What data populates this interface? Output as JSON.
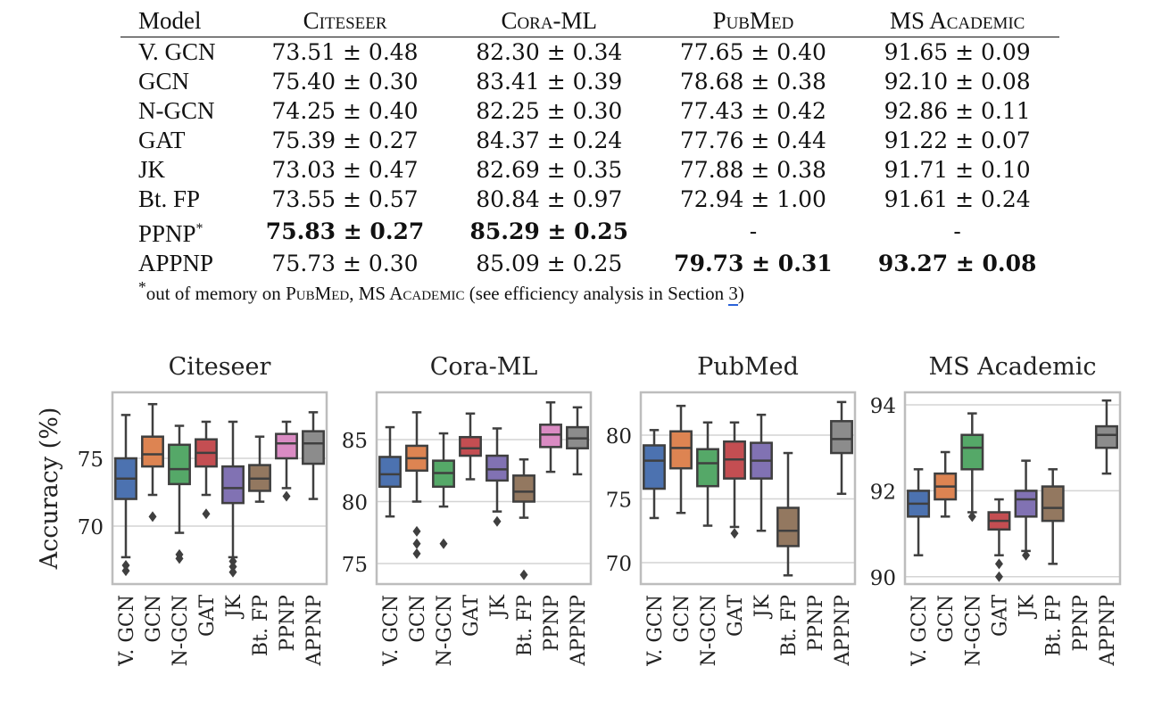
{
  "table": {
    "headers": [
      "Model",
      "Citeseer",
      "Cora-ML",
      "PubMed",
      "MS Academic"
    ],
    "rows": [
      {
        "model": "V. GCN",
        "cells": [
          "73.51 ± 0.48",
          "82.30 ± 0.34",
          "77.65 ± 0.40",
          "91.65 ± 0.09"
        ],
        "best": [
          false,
          false,
          false,
          false
        ]
      },
      {
        "model": "GCN",
        "cells": [
          "75.40 ± 0.30",
          "83.41 ± 0.39",
          "78.68 ± 0.38",
          "92.10 ± 0.08"
        ],
        "best": [
          false,
          false,
          false,
          false
        ]
      },
      {
        "model": "N-GCN",
        "cells": [
          "74.25 ± 0.40",
          "82.25 ± 0.30",
          "77.43 ± 0.42",
          "92.86 ± 0.11"
        ],
        "best": [
          false,
          false,
          false,
          false
        ]
      },
      {
        "model": "GAT",
        "cells": [
          "75.39 ± 0.27",
          "84.37 ± 0.24",
          "77.76 ± 0.44",
          "91.22 ± 0.07"
        ],
        "best": [
          false,
          false,
          false,
          false
        ]
      },
      {
        "model": "JK",
        "cells": [
          "73.03 ± 0.47",
          "82.69 ± 0.35",
          "77.88 ± 0.38",
          "91.71 ± 0.10"
        ],
        "best": [
          false,
          false,
          false,
          false
        ]
      },
      {
        "model": "Bt. FP",
        "cells": [
          "73.55 ± 0.57",
          "80.84 ± 0.97",
          "72.94 ± 1.00",
          "91.61 ± 0.24"
        ],
        "best": [
          false,
          false,
          false,
          false
        ]
      },
      {
        "model": "PPNP*",
        "cells": [
          "75.83 ± 0.27",
          "85.29 ± 0.25",
          "-",
          "-"
        ],
        "best": [
          true,
          true,
          false,
          false
        ]
      },
      {
        "model": "APPNP",
        "cells": [
          "75.73 ± 0.30",
          "85.09 ± 0.25",
          "79.73 ± 0.31",
          "93.27 ± 0.08"
        ],
        "best": [
          false,
          false,
          true,
          true
        ]
      }
    ],
    "footnote": {
      "marker": "*",
      "text_before": "out of memory on ",
      "dataset1": "PubMed",
      "sep": ", ",
      "dataset2": "MS Academic",
      "text_after": " (see efficiency analysis in Section ",
      "ref": "3",
      "close": ")"
    }
  },
  "chart_data": [
    {
      "type": "box",
      "title": "Citeseer",
      "ylabel": "Accuracy (%)",
      "ylim": [
        65.72,
        79.87
      ],
      "yticks": [
        70,
        75
      ],
      "grid": true,
      "categories": [
        "V. GCN",
        "GCN",
        "N-GCN",
        "GAT",
        "JK",
        "Bt. FP",
        "PPNP",
        "APPNP"
      ],
      "boxes": [
        {
          "whislo": 67.7,
          "q1": 72.0,
          "med": 73.5,
          "q3": 75.0,
          "whishi": 78.2,
          "fliers": [
            67.1,
            66.7
          ]
        },
        {
          "whislo": 72.3,
          "q1": 74.4,
          "med": 75.3,
          "q3": 76.6,
          "whishi": 79.0,
          "fliers": [
            70.7
          ]
        },
        {
          "whislo": 69.5,
          "q1": 73.1,
          "med": 74.2,
          "q3": 76.0,
          "whishi": 77.4,
          "fliers": [
            67.9,
            67.6
          ]
        },
        {
          "whislo": 72.3,
          "q1": 74.4,
          "med": 75.4,
          "q3": 76.4,
          "whishi": 77.7,
          "fliers": [
            70.9
          ]
        },
        {
          "whislo": 67.7,
          "q1": 71.7,
          "med": 72.8,
          "q3": 74.4,
          "whishi": 77.7,
          "fliers": [
            67.4,
            67.0,
            66.6
          ]
        },
        {
          "whislo": 71.8,
          "q1": 72.6,
          "med": 73.5,
          "q3": 74.5,
          "whishi": 76.6,
          "fliers": []
        },
        {
          "whislo": 72.8,
          "q1": 75.0,
          "med": 76.1,
          "q3": 76.8,
          "whishi": 77.7,
          "fliers": [
            72.2
          ]
        },
        {
          "whislo": 72.0,
          "q1": 74.6,
          "med": 76.1,
          "q3": 77.0,
          "whishi": 78.4,
          "fliers": []
        }
      ]
    },
    {
      "type": "box",
      "title": "Cora-ML",
      "ylabel": "",
      "ylim": [
        73.35,
        88.81
      ],
      "yticks": [
        75,
        80,
        85
      ],
      "grid": true,
      "categories": [
        "V. GCN",
        "GCN",
        "N-GCN",
        "GAT",
        "JK",
        "Bt. FP",
        "PPNP",
        "APPNP"
      ],
      "boxes": [
        {
          "whislo": 78.8,
          "q1": 81.2,
          "med": 82.2,
          "q3": 83.6,
          "whishi": 86.0,
          "fliers": []
        },
        {
          "whislo": 80.0,
          "q1": 82.5,
          "med": 83.5,
          "q3": 84.5,
          "whishi": 87.2,
          "fliers": [
            77.6,
            76.6,
            75.8
          ]
        },
        {
          "whislo": 79.6,
          "q1": 81.2,
          "med": 82.3,
          "q3": 83.3,
          "whishi": 85.5,
          "fliers": [
            76.6
          ]
        },
        {
          "whislo": 81.8,
          "q1": 83.7,
          "med": 84.3,
          "q3": 85.2,
          "whishi": 87.1,
          "fliers": []
        },
        {
          "whislo": 79.2,
          "q1": 81.7,
          "med": 82.6,
          "q3": 83.7,
          "whishi": 85.9,
          "fliers": [
            78.4
          ]
        },
        {
          "whislo": 78.7,
          "q1": 80.0,
          "med": 80.8,
          "q3": 82.1,
          "whishi": 83.4,
          "fliers": [
            74.1
          ]
        },
        {
          "whislo": 82.4,
          "q1": 84.4,
          "med": 85.4,
          "q3": 86.2,
          "whishi": 88.0,
          "fliers": []
        },
        {
          "whislo": 82.2,
          "q1": 84.3,
          "med": 85.1,
          "q3": 86.0,
          "whishi": 87.6,
          "fliers": []
        }
      ]
    },
    {
      "type": "box",
      "title": "PubMed",
      "ylabel": "",
      "ylim": [
        68.32,
        83.36
      ],
      "yticks": [
        70,
        75,
        80
      ],
      "grid": true,
      "categories": [
        "V. GCN",
        "GCN",
        "N-GCN",
        "GAT",
        "JK",
        "Bt. FP",
        "PPNP",
        "APPNP"
      ],
      "boxes": [
        {
          "whislo": 73.5,
          "q1": 75.8,
          "med": 78.0,
          "q3": 79.2,
          "whishi": 80.4,
          "fliers": []
        },
        {
          "whislo": 73.9,
          "q1": 77.4,
          "med": 79.0,
          "q3": 80.3,
          "whishi": 82.3,
          "fliers": []
        },
        {
          "whislo": 72.9,
          "q1": 76.0,
          "med": 77.8,
          "q3": 78.9,
          "whishi": 81.0,
          "fliers": []
        },
        {
          "whislo": 72.8,
          "q1": 76.6,
          "med": 78.1,
          "q3": 79.5,
          "whishi": 81.0,
          "fliers": [
            72.3
          ]
        },
        {
          "whislo": 72.5,
          "q1": 76.6,
          "med": 78.0,
          "q3": 79.4,
          "whishi": 81.6,
          "fliers": []
        },
        {
          "whislo": 69.0,
          "q1": 71.3,
          "med": 72.5,
          "q3": 74.3,
          "whishi": 78.6,
          "fliers": []
        },
        null,
        {
          "whislo": 75.4,
          "q1": 78.6,
          "med": 79.7,
          "q3": 81.1,
          "whishi": 82.6,
          "fliers": []
        }
      ]
    },
    {
      "type": "box",
      "title": "MS Academic",
      "ylabel": "",
      "ylim": [
        89.83,
        94.29
      ],
      "yticks": [
        90,
        92,
        94
      ],
      "grid": true,
      "categories": [
        "V. GCN",
        "GCN",
        "N-GCN",
        "GAT",
        "JK",
        "Bt. FP",
        "PPNP",
        "APPNP"
      ],
      "boxes": [
        {
          "whislo": 90.5,
          "q1": 91.4,
          "med": 91.7,
          "q3": 92.0,
          "whishi": 92.5,
          "fliers": []
        },
        {
          "whislo": 91.4,
          "q1": 91.8,
          "med": 92.1,
          "q3": 92.4,
          "whishi": 92.9,
          "fliers": []
        },
        {
          "whislo": 91.5,
          "q1": 92.5,
          "med": 93.0,
          "q3": 93.3,
          "whishi": 93.8,
          "fliers": [
            91.4
          ]
        },
        {
          "whislo": 90.5,
          "q1": 91.1,
          "med": 91.3,
          "q3": 91.5,
          "whishi": 91.8,
          "fliers": [
            90.3,
            90.0
          ]
        },
        {
          "whislo": 90.6,
          "q1": 91.4,
          "med": 91.8,
          "q3": 92.0,
          "whishi": 92.7,
          "fliers": [
            90.5
          ]
        },
        {
          "whislo": 90.3,
          "q1": 91.3,
          "med": 91.6,
          "q3": 92.1,
          "whishi": 92.5,
          "fliers": []
        },
        null,
        {
          "whislo": 92.4,
          "q1": 93.0,
          "med": 93.3,
          "q3": 93.5,
          "whishi": 94.1,
          "fliers": []
        }
      ]
    }
  ],
  "colors": {
    "series": [
      "#4c72b0",
      "#dd8452",
      "#55a868",
      "#c44e52",
      "#8172b3",
      "#937860",
      "#da8bc3",
      "#8c8c8c"
    ],
    "edge": "#3f3f3f",
    "grid": "#d4d4d4",
    "frame": "#bdbdbd",
    "footnote_ref_underline": "#2a62d8"
  }
}
